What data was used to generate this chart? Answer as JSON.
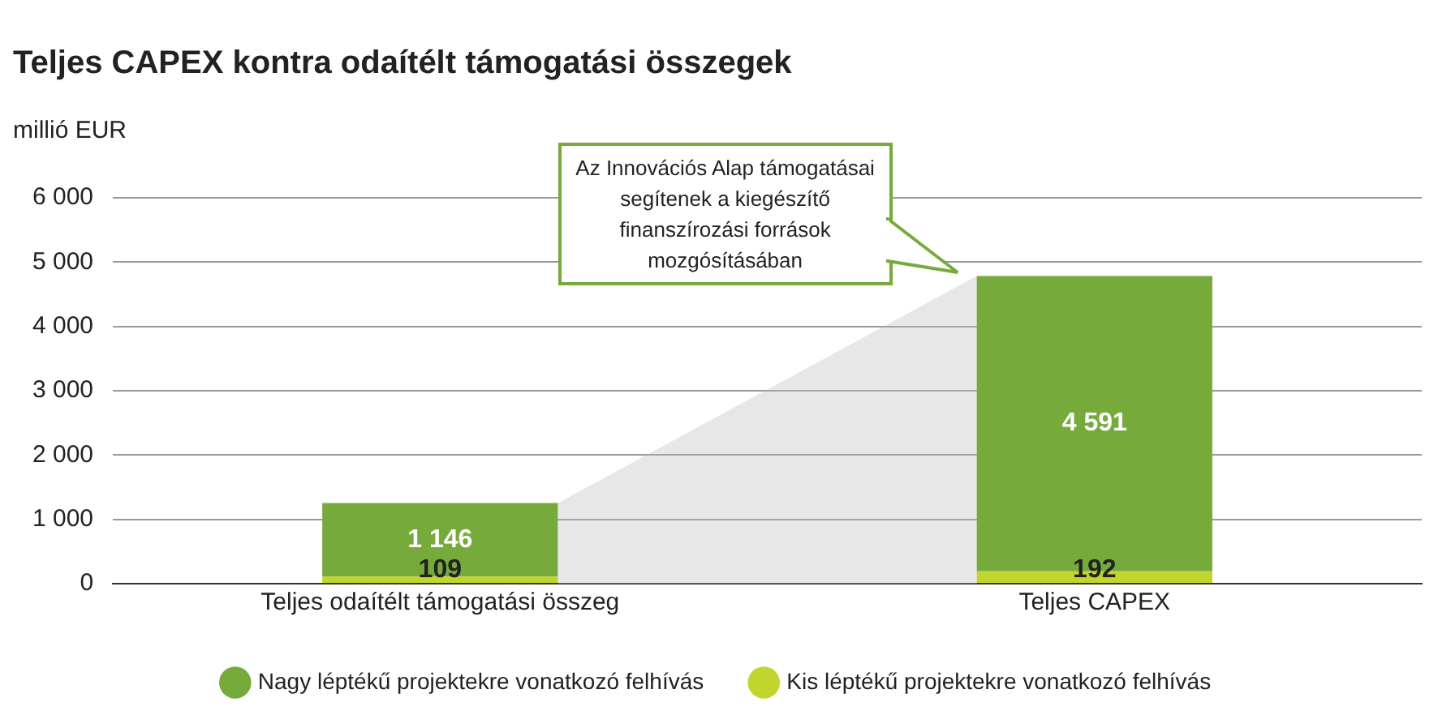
{
  "chart_data": {
    "type": "bar",
    "title": "Teljes CAPEX kontra odaítélt támogatási összegek",
    "ylabel": "millió EUR",
    "categories": [
      "Teljes odaítélt támogatási összeg",
      "Teljes CAPEX"
    ],
    "stacked": true,
    "series": [
      {
        "name": "Kis léptékű projektekre vonatkozó felhívás",
        "color": "#c2d42e",
        "values": [
          109,
          192
        ],
        "value_labels": [
          "109",
          "192"
        ]
      },
      {
        "name": "Nagy léptékű projektekre vonatkozó felhívás",
        "color": "#76ab3c",
        "values": [
          1146,
          4591
        ],
        "value_labels": [
          "1 146",
          "4 591"
        ]
      }
    ],
    "ylim": [
      0,
      6000
    ],
    "yticks": [
      0,
      {
        "value": 1000,
        "label": "1 000"
      },
      {
        "value": 2000,
        "label": "2 000"
      },
      {
        "value": 3000,
        "label": "3 000"
      },
      {
        "value": 4000,
        "label": "4 000"
      },
      {
        "value": 5000,
        "label": "5 000"
      },
      {
        "value": 6000,
        "label": "6 000"
      }
    ],
    "grid": "y",
    "legend": "bottom",
    "annotations": [
      "Az Innovációs Alap támogatásai segítenek a kiegészítő finanszírozási források mozgósításában"
    ]
  }
}
